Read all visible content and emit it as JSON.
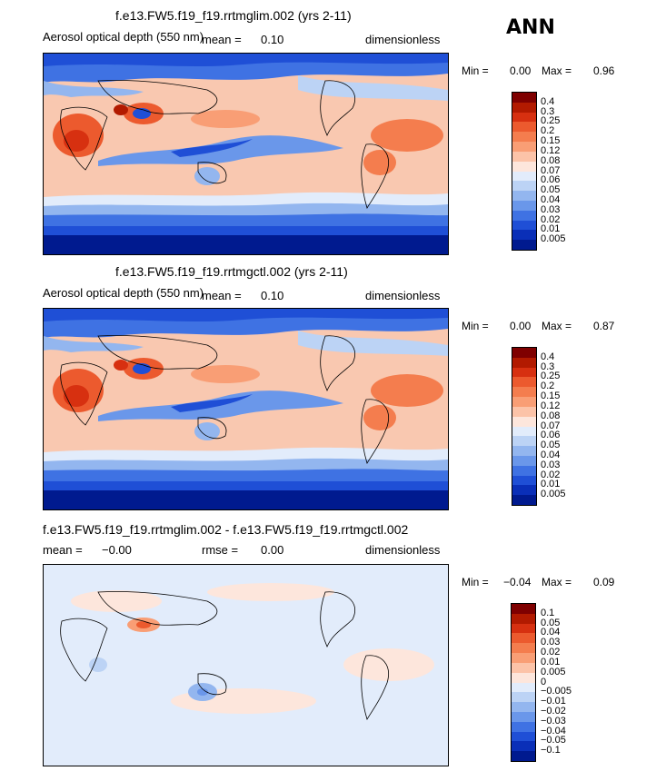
{
  "season": "ANN",
  "panels": [
    {
      "title": "f.e13.FW5.f19_f19.rrtmglim.002 (yrs 2-11)",
      "field": "Aerosol optical depth (550 nm)",
      "mean_text": "mean =",
      "mean_value": "0.10",
      "units": "dimensionless",
      "min_label": "Min =",
      "min_value": "0.00",
      "max_label": "Max =",
      "max_value": "0.96"
    },
    {
      "title": "f.e13.FW5.f19_f19.rrtmgctl.002 (yrs 2-11)",
      "field": "Aerosol optical depth (550 nm)",
      "mean_text": "mean =",
      "mean_value": "0.10",
      "units": "dimensionless",
      "min_label": "Min =",
      "min_value": "0.00",
      "max_label": "Max =",
      "max_value": "0.87"
    },
    {
      "title": "f.e13.FW5.f19_f19.rrtmglim.002 - f.e13.FW5.f19_f19.rrtmgctl.002",
      "mean_text": "mean =",
      "mean_value": "−0.00",
      "rmse_text": "rmse =",
      "rmse_value": "0.00",
      "units": "dimensionless",
      "min_label": "Min =",
      "min_value": "−0.04",
      "max_label": "Max =",
      "max_value": "0.09"
    }
  ],
  "colorbar_abs": {
    "labels": [
      "0.4",
      "0.3",
      "0.25",
      "0.2",
      "0.15",
      "0.12",
      "0.08",
      "0.07",
      "0.06",
      "0.05",
      "0.04",
      "0.03",
      "0.02",
      "0.01",
      "0.005"
    ],
    "colors": [
      "#7f0000",
      "#b21a00",
      "#d73010",
      "#ec5a2e",
      "#f47d4e",
      "#f99e75",
      "#fcc3a8",
      "#fde6dc",
      "#e2ecfb",
      "#bcd3f5",
      "#93b6ef",
      "#6a97ea",
      "#3f72e3",
      "#1f4fd6",
      "#0a2fb8",
      "#001a8f"
    ]
  },
  "colorbar_diff": {
    "labels": [
      "0.1",
      "0.05",
      "0.04",
      "0.03",
      "0.02",
      "0.01",
      "0.005",
      "0",
      "−0.005",
      "−0.01",
      "−0.02",
      "−0.03",
      "−0.04",
      "−0.05",
      "−0.1"
    ],
    "colors": [
      "#7f0000",
      "#b21a00",
      "#d73010",
      "#ec5a2e",
      "#f47d4e",
      "#f99e75",
      "#fcc3a8",
      "#fde6dc",
      "#e2ecfb",
      "#bcd3f5",
      "#93b6ef",
      "#6a97ea",
      "#3f72e3",
      "#1f4fd6",
      "#0a2fb8",
      "#001a8f"
    ]
  }
}
